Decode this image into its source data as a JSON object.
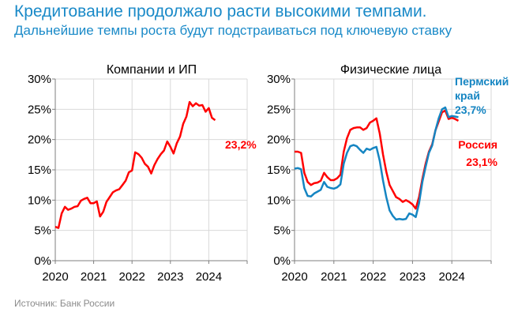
{
  "header": {
    "title": "Кредитование продолжало расти высокими темпами.",
    "subtitle": "Дальнейшие темпы роста будут подстраиваться под ключевую ставку"
  },
  "footer": {
    "source": "Источник: Банк России"
  },
  "colors": {
    "title": "#1a8ac8",
    "russia": "#ff0000",
    "perm": "#1585c2",
    "grid": "#d9d9d9"
  },
  "chart_data": [
    {
      "type": "line",
      "title": "Компании и ИП",
      "x_start": "2020-01",
      "frequency": "monthly",
      "xlim": [
        2020,
        2025
      ],
      "ylim": [
        0,
        30
      ],
      "x_ticks": [
        "2020",
        "2021",
        "2022",
        "2023",
        "2024"
      ],
      "y_ticks": [
        "0%",
        "5%",
        "10%",
        "15%",
        "20%",
        "25%",
        "30%"
      ],
      "grid": true,
      "series": [
        {
          "color": "#ff0000",
          "end_label": "23,2%",
          "values": [
            5.6,
            5.4,
            7.8,
            8.9,
            8.4,
            8.6,
            8.9,
            9.0,
            9.9,
            10.2,
            10.4,
            9.5,
            9.5,
            9.8,
            7.3,
            8.1,
            9.7,
            10.5,
            11.3,
            11.6,
            11.8,
            12.5,
            13.2,
            14.6,
            14.9,
            17.9,
            17.6,
            17.0,
            16.0,
            15.5,
            14.4,
            15.8,
            16.8,
            17.6,
            18.2,
            19.7,
            18.8,
            17.7,
            19.4,
            20.5,
            22.6,
            23.8,
            26.2,
            25.5,
            26.0,
            25.6,
            25.7,
            24.6,
            25.2,
            23.6,
            23.2
          ]
        }
      ]
    },
    {
      "type": "line",
      "title": "Физические лица",
      "x_start": "2020-01",
      "frequency": "monthly",
      "xlim": [
        2020,
        2025
      ],
      "ylim": [
        0,
        30
      ],
      "x_ticks": [
        "2020",
        "2021",
        "2022",
        "2023",
        "2024"
      ],
      "y_ticks": [
        "0%",
        "5%",
        "10%",
        "15%",
        "20%",
        "25%",
        "30%"
      ],
      "grid": true,
      "series": [
        {
          "name": "Россия",
          "color": "#ff0000",
          "end_label": "23,1%",
          "values": [
            18.0,
            18.0,
            17.8,
            14.5,
            13.0,
            12.5,
            12.8,
            12.9,
            13.2,
            14.5,
            13.8,
            13.3,
            13.3,
            13.6,
            14.2,
            18.0,
            20.2,
            21.6,
            21.9,
            22.0,
            22.0,
            21.6,
            21.9,
            22.8,
            23.1,
            23.5,
            21.0,
            17.5,
            14.7,
            12.5,
            11.5,
            10.5,
            10.2,
            9.7,
            10.0,
            9.7,
            9.3,
            8.6,
            10.5,
            13.5,
            16.0,
            18.0,
            19.2,
            21.5,
            23.0,
            24.5,
            24.8,
            23.4,
            23.6,
            23.4,
            23.1
          ]
        },
        {
          "name": "Пермский край",
          "name_lines": [
            "Пермский",
            "край"
          ],
          "color": "#1585c2",
          "end_label": "23,7%",
          "values": [
            15.2,
            15.3,
            15.1,
            12.0,
            10.7,
            10.6,
            11.1,
            11.4,
            11.7,
            13.0,
            12.2,
            12.0,
            11.9,
            12.1,
            12.6,
            16.0,
            17.8,
            18.9,
            19.1,
            18.9,
            18.3,
            17.8,
            18.5,
            18.3,
            18.6,
            18.8,
            16.5,
            13.2,
            10.5,
            8.3,
            7.4,
            6.8,
            6.9,
            6.8,
            6.9,
            7.8,
            7.6,
            7.2,
            9.5,
            13.0,
            15.5,
            17.8,
            19.0,
            21.5,
            23.5,
            25.0,
            25.3,
            23.7,
            23.9,
            23.8,
            23.7
          ]
        }
      ]
    }
  ]
}
